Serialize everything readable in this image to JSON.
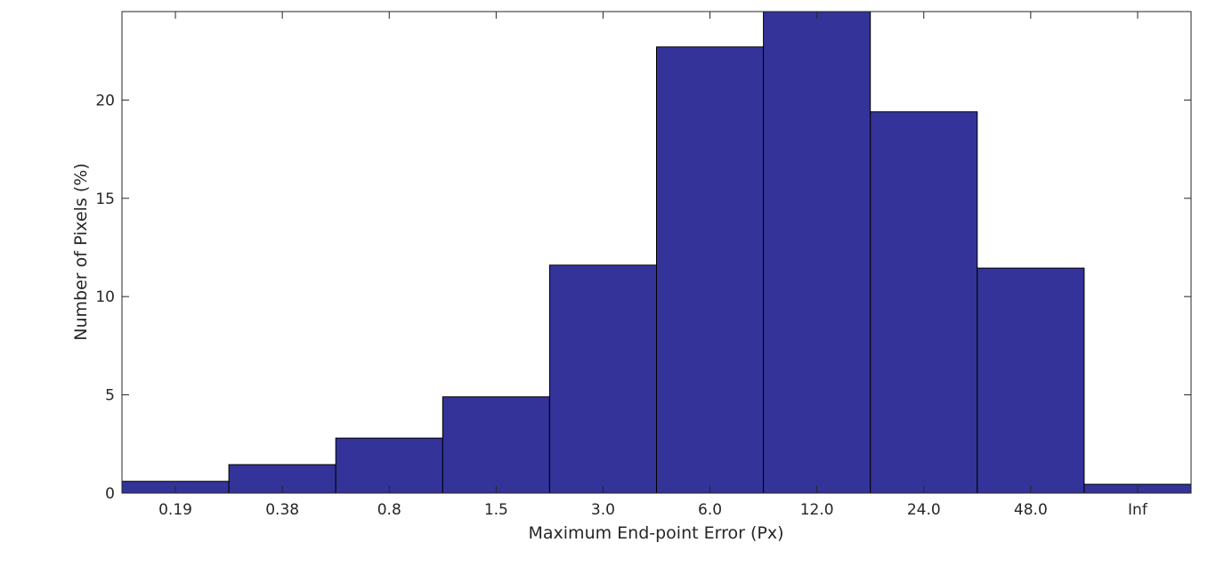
{
  "chart_data": {
    "type": "bar",
    "categories": [
      "0.19",
      "0.38",
      "0.8",
      "1.5",
      "3.0",
      "6.0",
      "12.0",
      "24.0",
      "48.0",
      "Inf"
    ],
    "values": [
      0.6,
      1.45,
      2.8,
      4.9,
      11.6,
      22.7,
      24.5,
      19.4,
      11.45,
      0.45
    ],
    "title": "",
    "xlabel": "Maximum End-point Error (Px)",
    "ylabel": "Number of Pixels (%)",
    "ylim": [
      0,
      24.5
    ],
    "yticks": [
      0,
      5,
      10,
      15,
      20
    ],
    "bar_color": "#333399",
    "grid": false,
    "legend": "none"
  }
}
